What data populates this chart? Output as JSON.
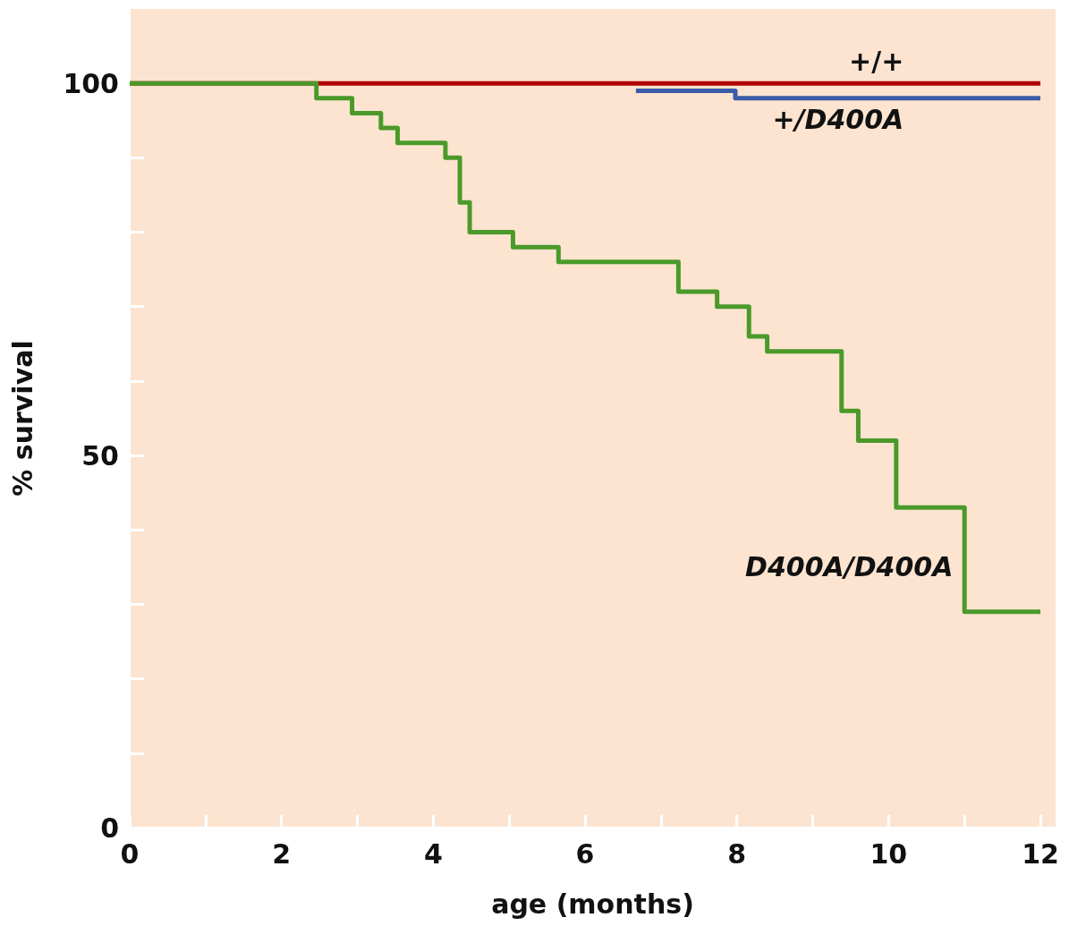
{
  "chart_data": {
    "type": "step",
    "xlabel": "age (months)",
    "ylabel": "% survival",
    "xlim": [
      0,
      12.2
    ],
    "ylim": [
      0,
      110
    ],
    "xticks": [
      0,
      {
        "value": 1,
        "label": null
      },
      2,
      {
        "value": 3,
        "label": null
      },
      4,
      {
        "value": 5,
        "label": null
      },
      6,
      {
        "value": 7,
        "label": null
      },
      8,
      {
        "value": 9,
        "label": null
      },
      10,
      {
        "value": 11,
        "label": null
      },
      12
    ],
    "yticks": [
      0,
      {
        "value": 10,
        "label": null
      },
      {
        "value": 20,
        "label": null
      },
      {
        "value": 30,
        "label": null
      },
      {
        "value": 40,
        "label": null
      },
      50,
      {
        "value": 60,
        "label": null
      },
      {
        "value": 70,
        "label": null
      },
      {
        "value": 80,
        "label": null
      },
      {
        "value": 90,
        "label": null
      },
      100
    ],
    "grid": false,
    "legend": false,
    "marker": "none",
    "line_style": "solid",
    "series": [
      {
        "name": "+/+",
        "color": "#b00000",
        "x": [
          0,
          12
        ],
        "values": [
          100,
          100
        ]
      },
      {
        "name": "+/D400A",
        "color": "#3a5ca8",
        "x": [
          6.67,
          7.98,
          12
        ],
        "values": [
          99,
          98,
          98
        ]
      },
      {
        "name": "D400A/D400A",
        "color": "#4a9a2a",
        "x": [
          0,
          2.46,
          2.93,
          3.31,
          3.53,
          4.16,
          4.35,
          4.48,
          5.05,
          5.65,
          7.23,
          7.74,
          8.16,
          8.4,
          9.38,
          9.6,
          10.1,
          11.0,
          12
        ],
        "values": [
          100,
          98,
          96,
          94,
          92,
          90,
          84,
          80,
          78,
          76,
          72,
          70,
          66,
          64,
          56,
          52,
          43,
          29,
          29
        ]
      }
    ]
  }
}
